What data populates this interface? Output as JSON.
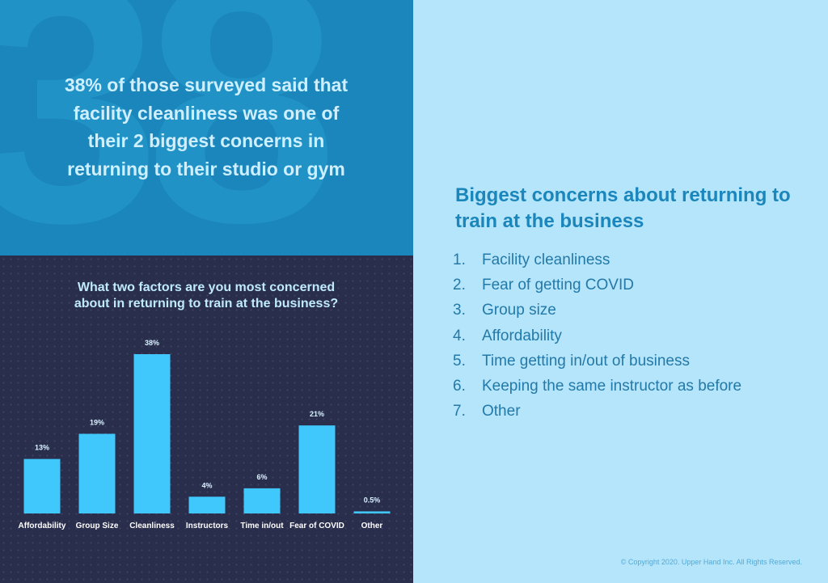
{
  "stat_panel": {
    "background_number": "38",
    "headline": "38% of those surveyed said that facility cleanliness was one of their 2 biggest concerns in returning to their studio or gym"
  },
  "chart_panel": {
    "title_line1": "What two factors are you most concerned",
    "title_line2": "about in returning to train at the business?"
  },
  "chart_data": {
    "type": "bar",
    "title": "What two factors are you most concerned about in returning to train at the business?",
    "categories": [
      "Affordability",
      "Group Size",
      "Cleanliness",
      "Instructors",
      "Time in/out",
      "Fear of COVID",
      "Other"
    ],
    "values": [
      13,
      19,
      38,
      4,
      6,
      21,
      0.5
    ],
    "value_labels": [
      "13%",
      "19%",
      "38%",
      "4%",
      "6%",
      "21%",
      "0.5%"
    ],
    "unit": "%",
    "xlabel": "",
    "ylabel": "",
    "ylim": [
      0,
      38
    ],
    "grid": false,
    "bar_color": "#40c7fb"
  },
  "info_panel": {
    "heading": "Biggest concerns about returning to train at the business",
    "items": [
      {
        "num": "1.",
        "label": "Facility cleanliness"
      },
      {
        "num": "2.",
        "label": "Fear of getting COVID"
      },
      {
        "num": "3.",
        "label": "Group size"
      },
      {
        "num": "4.",
        "label": "Affordability"
      },
      {
        "num": "5.",
        "label": "Time getting in/out of business"
      },
      {
        "num": "6.",
        "label": "Keeping the same instructor as before"
      },
      {
        "num": "7.",
        "label": "Other"
      }
    ],
    "copyright": "© Copyright 2020. Upper Hand Inc. All Rights Reserved."
  },
  "colors": {
    "stat_bg": "#1a86bb",
    "chart_bg": "#2a2e4d",
    "info_bg": "#b5e5fb",
    "accent_text": "#1a86bb"
  }
}
